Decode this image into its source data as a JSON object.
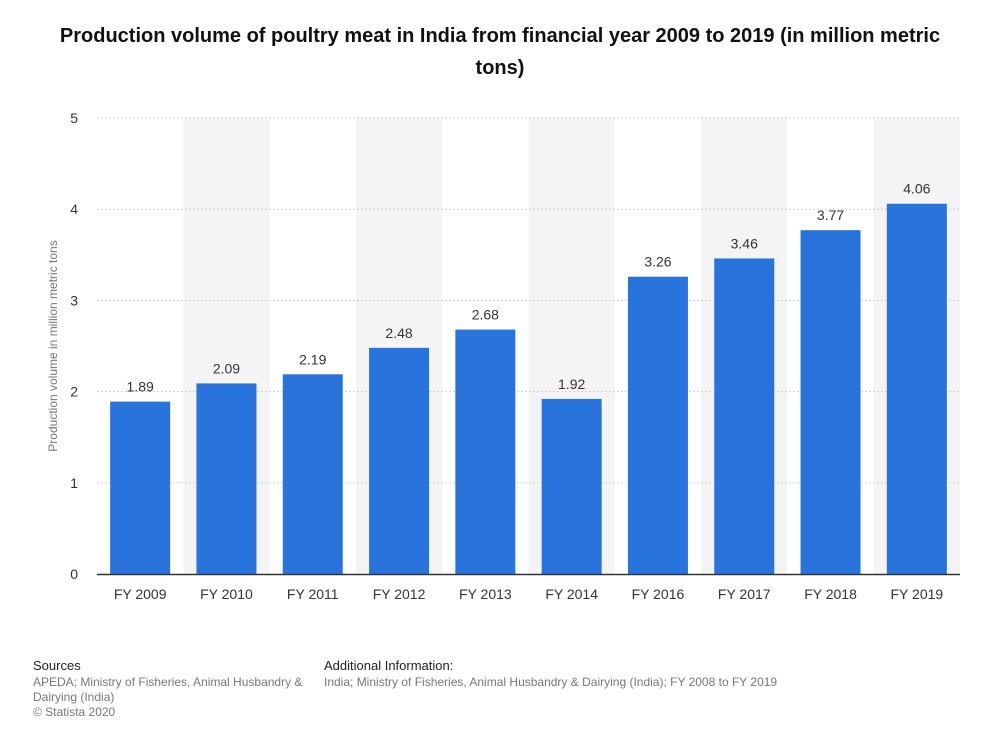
{
  "colors": {
    "bar": "#2874dc",
    "band": "#f4f4f4",
    "grid": "#cfcfcf",
    "axis": "#333333",
    "label": "#333333",
    "tick": "#333333",
    "ytitle": "#777777"
  },
  "chart_data": {
    "type": "bar",
    "title": "Production volume of poultry meat in India from financial year 2009 to 2019 (in million metric tons)",
    "xlabel": "",
    "ylabel": "Production volume in million metric tons",
    "categories": [
      "FY 2009",
      "FY 2010",
      "FY 2011",
      "FY 2012",
      "FY 2013",
      "FY 2014",
      "FY 2016",
      "FY 2017",
      "FY 2018",
      "FY 2019"
    ],
    "values": [
      1.89,
      2.09,
      2.19,
      2.48,
      2.68,
      1.92,
      3.26,
      3.46,
      3.77,
      4.06
    ],
    "value_labels": [
      "1.89",
      "2.09",
      "2.19",
      "2.48",
      "2.68",
      "1.92",
      "3.26",
      "3.46",
      "3.77",
      "4.06"
    ],
    "ylim": [
      0,
      5
    ],
    "yticks": [
      0,
      1,
      2,
      3,
      4,
      5
    ],
    "grid": true
  },
  "footer": {
    "sources_heading": "Sources",
    "sources_line1": "APEDA; Ministry of Fisheries, Animal Husbandry &",
    "sources_line2": "Dairying (India)",
    "copyright": "© Statista 2020",
    "additional_heading": "Additional Information:",
    "additional_text": "India; Ministry of Fisheries, Animal Husbandry & Dairying (India); FY 2008 to FY 2019"
  }
}
